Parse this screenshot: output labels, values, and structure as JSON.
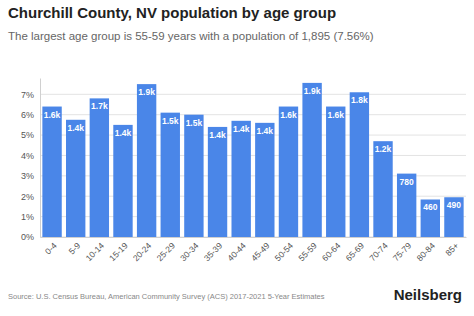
{
  "chart_data": {
    "type": "bar",
    "title": "Churchill County, NV population by age group",
    "subtitle": "The largest age group is 55-59 years with a population of 1,895 (7.56%)",
    "categories": [
      "0-4",
      "5-9",
      "10-14",
      "15-19",
      "20-24",
      "25-29",
      "30-34",
      "35-39",
      "40-44",
      "45-49",
      "50-54",
      "55-59",
      "60-64",
      "65-69",
      "70-74",
      "75-79",
      "80-84",
      "85+"
    ],
    "values": [
      6.4,
      5.75,
      6.8,
      5.5,
      7.5,
      6.1,
      6.0,
      5.4,
      5.7,
      5.6,
      6.4,
      7.56,
      6.4,
      7.1,
      4.7,
      3.11,
      1.84,
      1.95
    ],
    "population": [
      1600,
      1440,
      1700,
      1380,
      1880,
      1530,
      1510,
      1350,
      1430,
      1400,
      1600,
      1895,
      1600,
      1780,
      1180,
      780,
      460,
      490
    ],
    "population_labels": [
      "1.6k",
      "1.4k",
      "1.7k",
      "1.4k",
      "1.9k",
      "1.5k",
      "1.5k",
      "1.4k",
      "1.4k",
      "1.4k",
      "1.6k",
      "1.9k",
      "1.6k",
      "1.8k",
      "1.2k",
      "780",
      "460",
      "490"
    ],
    "color": "#4a86e8",
    "ylim": [
      0,
      7.8
    ],
    "yticks": [
      {
        "value": 0,
        "label": "0%"
      },
      {
        "value": 1,
        "label": "1%"
      },
      {
        "value": 2,
        "label": "2%"
      },
      {
        "value": 3,
        "label": "3%"
      },
      {
        "value": 4,
        "label": "4%"
      },
      {
        "value": 5,
        "label": "5%"
      },
      {
        "value": 6,
        "label": "6%"
      },
      {
        "value": 7,
        "label": "7%"
      }
    ],
    "grid": true,
    "source": "Source: U.S. Census Bureau, American Community Survey (ACS) 2017-2021 5-Year Estimates",
    "brand": "Neilsberg"
  }
}
